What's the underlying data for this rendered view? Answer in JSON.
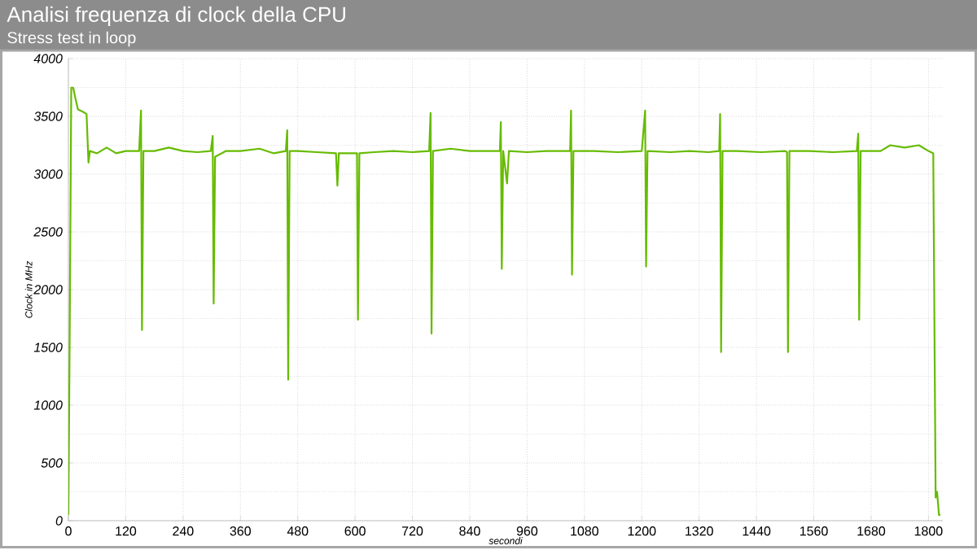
{
  "chart_data": {
    "type": "line",
    "title": "Analisi frequenza di clock della CPU",
    "subtitle": "Stress test in loop",
    "xlabel": "secondi",
    "ylabel": "Clock in MHz",
    "xlim": [
      0,
      1830
    ],
    "ylim": [
      0,
      4000
    ],
    "xticks": [
      0,
      120,
      240,
      360,
      480,
      600,
      720,
      840,
      960,
      1080,
      1200,
      1320,
      1440,
      1560,
      1680,
      1800
    ],
    "yticks": [
      0,
      500,
      1000,
      1500,
      2000,
      2500,
      3000,
      3500,
      4000
    ],
    "grid": true,
    "marker": "none",
    "line_style": "solid",
    "series": [
      {
        "color": "#66bb00",
        "x": [
          0,
          3,
          6,
          10,
          15,
          20,
          30,
          38,
          42,
          45,
          60,
          80,
          100,
          120,
          148,
          152,
          154,
          157,
          180,
          210,
          240,
          270,
          298,
          302,
          304,
          307,
          330,
          360,
          400,
          430,
          455,
          458,
          460,
          463,
          480,
          520,
          560,
          563,
          566,
          600,
          604,
          606,
          609,
          640,
          680,
          720,
          755,
          758,
          760,
          763,
          800,
          840,
          880,
          903,
          905,
          907,
          910,
          918,
          922,
          960,
          1000,
          1050,
          1052,
          1054,
          1057,
          1100,
          1150,
          1200,
          1207,
          1209,
          1212,
          1260,
          1300,
          1340,
          1362,
          1364,
          1366,
          1369,
          1400,
          1450,
          1500,
          1504,
          1506,
          1509,
          1550,
          1600,
          1650,
          1653,
          1655,
          1658,
          1700,
          1720,
          1750,
          1780,
          1800,
          1810,
          1815,
          1818,
          1822,
          1825
        ],
        "values": [
          50,
          1800,
          3750,
          3750,
          3650,
          3560,
          3540,
          3520,
          3100,
          3200,
          3180,
          3230,
          3180,
          3200,
          3200,
          3550,
          1650,
          3200,
          3200,
          3230,
          3200,
          3190,
          3200,
          3330,
          1880,
          3150,
          3200,
          3200,
          3220,
          3180,
          3200,
          3380,
          1220,
          3200,
          3200,
          3190,
          3180,
          2900,
          3180,
          3180,
          3180,
          1740,
          3180,
          3190,
          3200,
          3190,
          3200,
          3530,
          1620,
          3200,
          3220,
          3200,
          3200,
          3200,
          3450,
          2180,
          3200,
          2920,
          3200,
          3190,
          3200,
          3200,
          3550,
          2130,
          3200,
          3200,
          3190,
          3200,
          3550,
          2200,
          3200,
          3190,
          3200,
          3190,
          3200,
          3520,
          1460,
          3200,
          3200,
          3190,
          3200,
          3190,
          1460,
          3200,
          3200,
          3190,
          3200,
          3350,
          1740,
          3200,
          3200,
          3250,
          3230,
          3250,
          3200,
          3180,
          200,
          250,
          50,
          50
        ]
      }
    ]
  }
}
